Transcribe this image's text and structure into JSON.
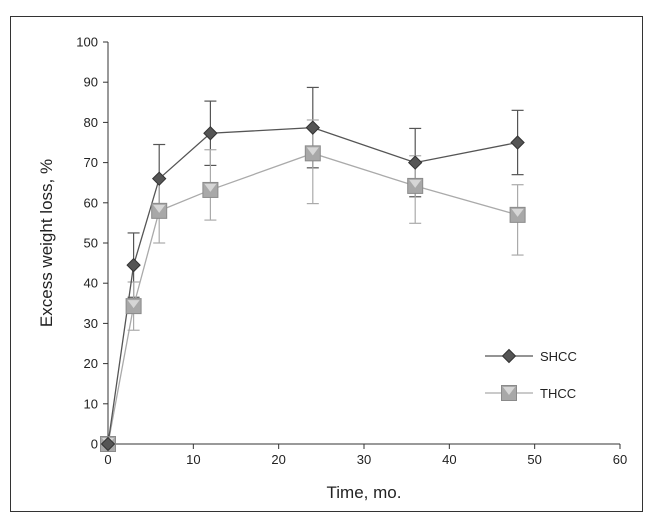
{
  "chart_data": {
    "type": "line",
    "xlabel": "Time, mo.",
    "ylabel": "Excess weight loss, %",
    "xlim": [
      0,
      60
    ],
    "ylim": [
      0,
      100
    ],
    "xticks": [
      0,
      10,
      20,
      30,
      40,
      50,
      60
    ],
    "yticks": [
      0,
      10,
      20,
      30,
      40,
      50,
      60,
      70,
      80,
      90,
      100
    ],
    "grid": false,
    "legend_position": "right",
    "series": [
      {
        "name": "SHCC",
        "marker": "diamond",
        "color": "#555555",
        "marker_color": "#555555",
        "x": [
          0,
          3,
          6,
          12,
          24,
          36,
          48
        ],
        "y": [
          0,
          44.5,
          66,
          77.3,
          78.7,
          70,
          75
        ],
        "error_upper": [
          0,
          8,
          8.5,
          8,
          10,
          8.5,
          8
        ],
        "error_lower": [
          0,
          8,
          8.5,
          8,
          10,
          8.5,
          8
        ]
      },
      {
        "name": "THCC",
        "marker": "square",
        "color": "#aaaaaa",
        "marker_color": "#a8a8a8",
        "x": [
          0,
          3,
          6,
          12,
          24,
          36,
          48
        ],
        "y": [
          0,
          34.3,
          58,
          63.2,
          72.3,
          64.2,
          57
        ],
        "error_upper": [
          0,
          6,
          8,
          10,
          8.3,
          7.5,
          7.5
        ],
        "error_lower": [
          0,
          6,
          8,
          7.5,
          12.5,
          9.3,
          10
        ]
      }
    ]
  }
}
